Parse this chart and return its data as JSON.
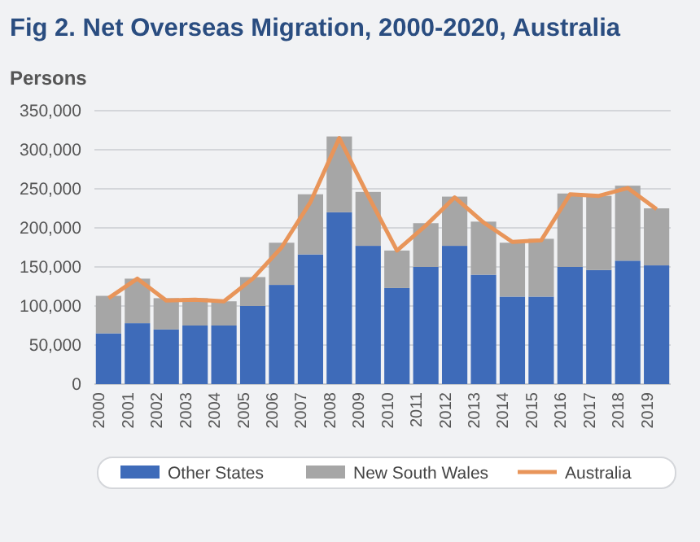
{
  "chart_data": {
    "type": "bar",
    "stacked": true,
    "title": "Fig 2. Net Overseas Migration, 2000-2020, Australia",
    "ylabel": "Persons",
    "categories": [
      "2000",
      "2001",
      "2002",
      "2003",
      "2004",
      "2005",
      "2006",
      "2007",
      "2008",
      "2009",
      "2010",
      "2011",
      "2012",
      "2013",
      "2014",
      "2015",
      "2016",
      "2017",
      "2018",
      "2019"
    ],
    "series": [
      {
        "name": "Other States",
        "color": "#3e6bb9",
        "values": [
          65000,
          78000,
          70000,
          75000,
          75000,
          100000,
          127000,
          166000,
          220000,
          177000,
          123000,
          150000,
          177000,
          140000,
          112000,
          112000,
          150000,
          146000,
          158000,
          152000
        ]
      },
      {
        "name": "New South Wales",
        "color": "#a6a6a6",
        "values": [
          48000,
          57000,
          40000,
          35000,
          31000,
          37000,
          54000,
          77000,
          97000,
          69000,
          48000,
          56000,
          63000,
          68000,
          69000,
          74000,
          94000,
          95000,
          96000,
          73000
        ]
      },
      {
        "name": "Australia",
        "type": "line",
        "color": "#e8955a",
        "values": [
          110000,
          135000,
          107000,
          108000,
          106000,
          135000,
          175000,
          233000,
          315000,
          241000,
          171000,
          203000,
          239000,
          207000,
          182000,
          184000,
          243000,
          241000,
          251000,
          224000
        ]
      }
    ],
    "ylim": [
      0,
      350000
    ],
    "yticks": [
      {
        "value": 0,
        "label": "0"
      },
      {
        "value": 50000,
        "label": "50,000"
      },
      {
        "value": 100000,
        "label": "100,000"
      },
      {
        "value": 150000,
        "label": "150,000"
      },
      {
        "value": 200000,
        "label": "200,000"
      },
      {
        "value": 250000,
        "label": "250,000"
      },
      {
        "value": 300000,
        "label": "300,000"
      },
      {
        "value": 350000,
        "label": "350,000"
      }
    ],
    "grid": "y",
    "legend": "bottom"
  }
}
